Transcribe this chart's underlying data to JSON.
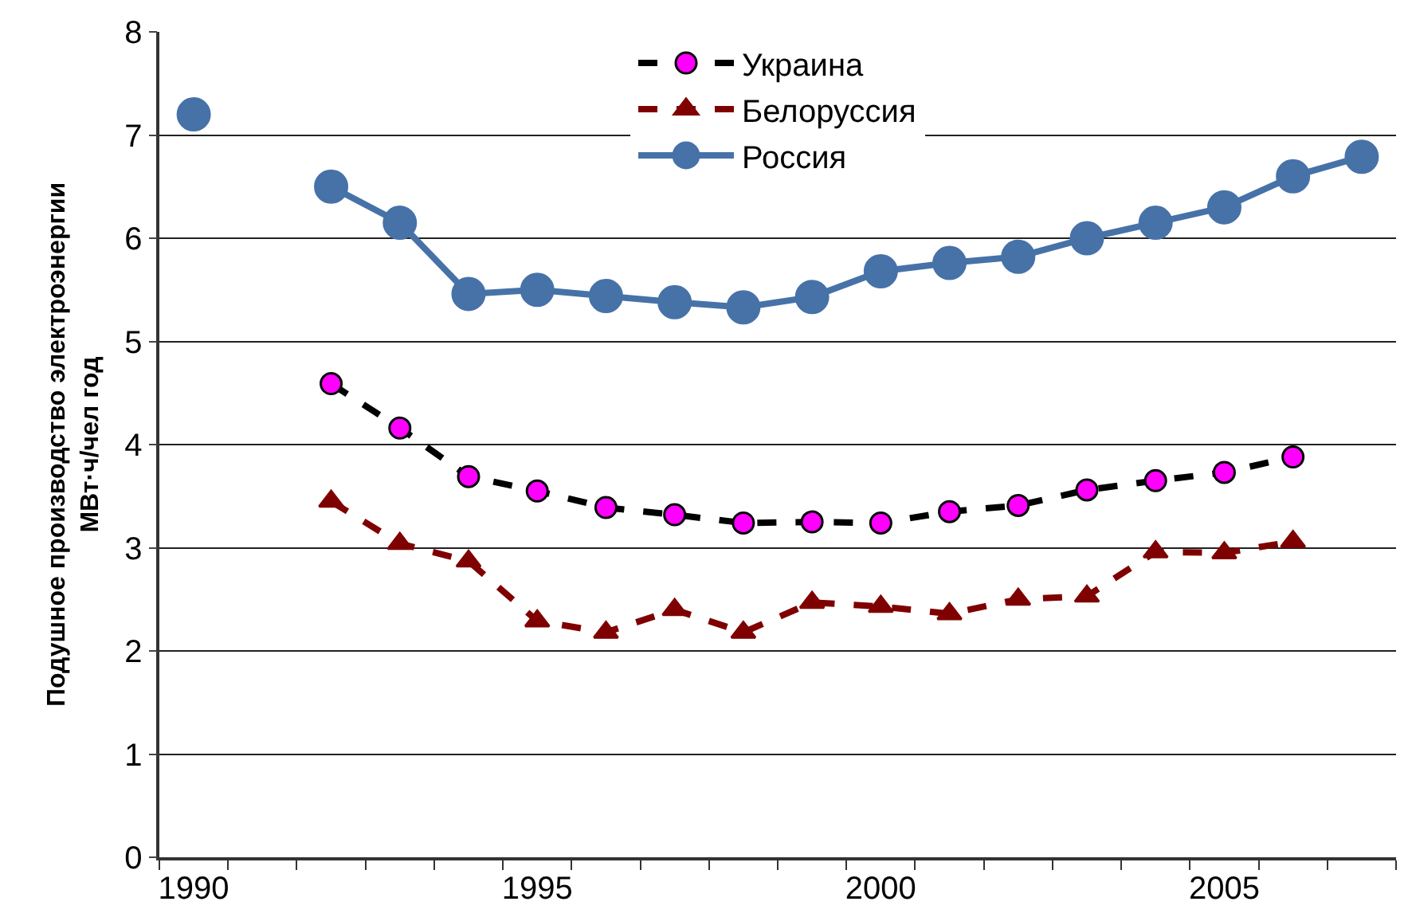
{
  "chart_data": {
    "type": "line",
    "ylabel": "Подушное производство электроэнергии\nМВт·ч/чел год",
    "xlim": [
      1989.5,
      2007.5
    ],
    "xticks": [
      1990,
      1995,
      2000,
      2005
    ],
    "ylim": [
      0,
      8
    ],
    "yticks": [
      0,
      1,
      2,
      3,
      4,
      5,
      6,
      7,
      8
    ],
    "grid": "y",
    "legend": "top",
    "series": [
      {
        "name": "Украина",
        "color": "#000000",
        "marker": "circle",
        "line_style": "dashed",
        "x": [
          1992,
          1993,
          1994,
          1995,
          1996,
          1997,
          1998,
          1999,
          2000,
          2001,
          2002,
          2003,
          2004,
          2005,
          2006
        ],
        "values": [
          4.59,
          4.16,
          3.69,
          3.55,
          3.39,
          3.32,
          3.24,
          3.25,
          3.24,
          3.35,
          3.41,
          3.56,
          3.65,
          3.73,
          3.88
        ]
      },
      {
        "name": "Белоруссия",
        "color": "#7f0000",
        "marker": "triangle",
        "line_style": "dashed",
        "x": [
          1992,
          1993,
          1994,
          1995,
          1996,
          1997,
          1998,
          1999,
          2000,
          2001,
          2002,
          2003,
          2004,
          2005,
          2006
        ],
        "values": [
          3.45,
          3.04,
          2.87,
          2.29,
          2.18,
          2.4,
          2.18,
          2.47,
          2.43,
          2.36,
          2.5,
          2.53,
          2.96,
          2.95,
          3.06
        ]
      },
      {
        "name": "Россия",
        "color": "#4672a8",
        "marker": "circle",
        "line_style": "solid",
        "x": [
          1990,
          1991,
          1992,
          1993,
          1994,
          1995,
          1996,
          1997,
          1998,
          1999,
          2000,
          2001,
          2002,
          2003,
          2004,
          2005,
          2006,
          2007
        ],
        "values": [
          7.2,
          null,
          6.5,
          6.15,
          5.46,
          5.5,
          5.44,
          5.38,
          5.33,
          5.43,
          5.68,
          5.76,
          5.82,
          6.0,
          6.15,
          6.3,
          6.6,
          6.79
        ]
      }
    ]
  }
}
